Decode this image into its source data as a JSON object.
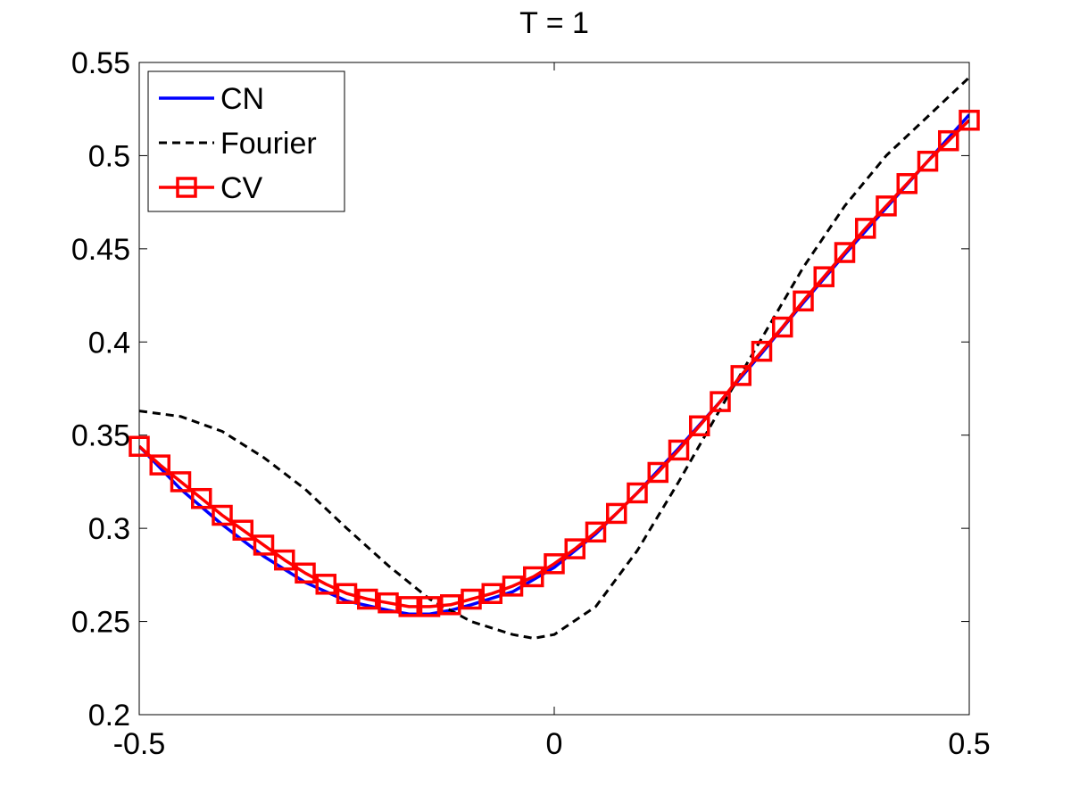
{
  "chart_data": {
    "type": "line",
    "title": "T = 1",
    "xlabel": "",
    "ylabel": "",
    "xlim": [
      -0.5,
      0.5
    ],
    "ylim": [
      0.2,
      0.55
    ],
    "xticks": [
      -0.5,
      0,
      0.5
    ],
    "xtick_labels": [
      "-0.5",
      "0",
      "0.5"
    ],
    "yticks": [
      0.2,
      0.25,
      0.3,
      0.35,
      0.4,
      0.45,
      0.5,
      0.55
    ],
    "ytick_labels": [
      "0.2",
      "0.25",
      "0.3",
      "0.35",
      "0.4",
      "0.45",
      "0.5",
      "0.55"
    ],
    "grid": false,
    "legend_position": "top-left",
    "series": [
      {
        "name": "CN",
        "color": "#0000ff",
        "style": "solid",
        "x": [
          -0.5,
          -0.45,
          -0.4,
          -0.35,
          -0.3,
          -0.25,
          -0.2,
          -0.175,
          -0.15,
          -0.125,
          -0.1,
          -0.05,
          0,
          0.05,
          0.1,
          0.15,
          0.2,
          0.25,
          0.3,
          0.35,
          0.4,
          0.45,
          0.5
        ],
        "y": [
          0.344,
          0.321,
          0.302,
          0.285,
          0.271,
          0.261,
          0.256,
          0.254,
          0.254,
          0.256,
          0.259,
          0.266,
          0.279,
          0.297,
          0.319,
          0.343,
          0.368,
          0.394,
          0.421,
          0.447,
          0.472,
          0.497,
          0.522
        ]
      },
      {
        "name": "Fourier",
        "color": "#000000",
        "style": "dashed",
        "x": [
          -0.5,
          -0.45,
          -0.4,
          -0.35,
          -0.3,
          -0.25,
          -0.2,
          -0.15,
          -0.1,
          -0.05,
          -0.025,
          0,
          0.05,
          0.1,
          0.15,
          0.2,
          0.25,
          0.3,
          0.35,
          0.4,
          0.45,
          0.5
        ],
        "y": [
          0.363,
          0.36,
          0.352,
          0.338,
          0.321,
          0.3,
          0.28,
          0.262,
          0.25,
          0.243,
          0.241,
          0.243,
          0.258,
          0.288,
          0.325,
          0.364,
          0.402,
          0.44,
          0.473,
          0.5,
          0.521,
          0.542
        ]
      },
      {
        "name": "CV",
        "color": "#ff0000",
        "style": "solid",
        "marker": "square",
        "x": [
          -0.5,
          -0.475,
          -0.45,
          -0.425,
          -0.4,
          -0.375,
          -0.35,
          -0.325,
          -0.3,
          -0.275,
          -0.25,
          -0.225,
          -0.2,
          -0.175,
          -0.15,
          -0.125,
          -0.1,
          -0.075,
          -0.05,
          -0.025,
          0,
          0.025,
          0.05,
          0.075,
          0.1,
          0.125,
          0.15,
          0.175,
          0.2,
          0.225,
          0.25,
          0.275,
          0.3,
          0.325,
          0.35,
          0.375,
          0.4,
          0.425,
          0.45,
          0.475,
          0.5
        ],
        "y": [
          0.344,
          0.334,
          0.325,
          0.316,
          0.307,
          0.299,
          0.291,
          0.283,
          0.276,
          0.27,
          0.265,
          0.262,
          0.26,
          0.258,
          0.258,
          0.259,
          0.262,
          0.265,
          0.269,
          0.274,
          0.281,
          0.289,
          0.298,
          0.308,
          0.319,
          0.33,
          0.342,
          0.355,
          0.368,
          0.382,
          0.395,
          0.408,
          0.422,
          0.435,
          0.448,
          0.461,
          0.473,
          0.485,
          0.497,
          0.508,
          0.519
        ]
      }
    ]
  }
}
